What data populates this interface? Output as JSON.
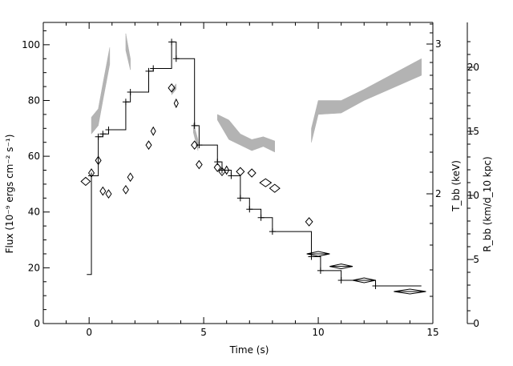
{
  "chart_data": {
    "type": "scatter",
    "title": "",
    "xlabel": "Time (s)",
    "ylabel_left": "Flux (10⁻⁹ ergs cm⁻² s⁻¹)",
    "ylabel_right_1": "T_bb (keV)",
    "ylabel_right_2": "R_bb (km/d_10 kpc)",
    "xlim": [
      -2,
      15
    ],
    "ylim_flux": [
      0,
      108
    ],
    "x_ticks": [
      "0",
      "5",
      "10",
      "15"
    ],
    "y_ticks_flux": [
      "0",
      "20",
      "40",
      "60",
      "80",
      "100"
    ],
    "y_ticks_T": [
      "2",
      "3"
    ],
    "y_ticks_R": [
      "0",
      "5",
      "10",
      "15",
      "20"
    ],
    "series": [
      {
        "label": "flux",
        "style": "step",
        "points": [
          {
            "x": -0.1,
            "y": 17.6
          },
          {
            "x": 0.1,
            "y": 53
          },
          {
            "x": 0.4,
            "y": 67
          },
          {
            "x": 0.6,
            "y": 68
          },
          {
            "x": 0.85,
            "y": 69.5
          },
          {
            "x": 1.6,
            "y": 79.5
          },
          {
            "x": 1.8,
            "y": 83
          },
          {
            "x": 2.6,
            "y": 90.5
          },
          {
            "x": 2.8,
            "y": 91.5
          },
          {
            "x": 3.6,
            "y": 101
          },
          {
            "x": 3.8,
            "y": 95
          },
          {
            "x": 4.6,
            "y": 71
          },
          {
            "x": 4.8,
            "y": 64
          },
          {
            "x": 5.6,
            "y": 58
          },
          {
            "x": 5.8,
            "y": 55
          },
          {
            "x": 6.2,
            "y": 53
          },
          {
            "x": 6.6,
            "y": 45
          },
          {
            "x": 7.0,
            "y": 41
          },
          {
            "x": 7.5,
            "y": 38
          },
          {
            "x": 8.0,
            "y": 33
          },
          {
            "x": 9.7,
            "y": 24
          },
          {
            "x": 10.1,
            "y": 19
          },
          {
            "x": 11.0,
            "y": 15.5
          },
          {
            "x": 12.5,
            "y": 13.5
          },
          {
            "x": 14.5,
            "y": 13.5
          }
        ]
      },
      {
        "label": "temperature",
        "style": "diamond",
        "points_in_flux_units": [
          {
            "x": -0.15,
            "y": 51,
            "dx": 0.2
          },
          {
            "x": 0.1,
            "y": 54,
            "dx": 0.12
          },
          {
            "x": 0.4,
            "y": 58.5,
            "dx": 0.12
          },
          {
            "x": 0.6,
            "y": 47.5,
            "dx": 0.12
          },
          {
            "x": 0.85,
            "y": 46.5,
            "dx": 0.12
          },
          {
            "x": 1.6,
            "y": 48,
            "dx": 0.12
          },
          {
            "x": 1.8,
            "y": 52.5,
            "dx": 0.12
          },
          {
            "x": 2.6,
            "y": 64,
            "dx": 0.12
          },
          {
            "x": 2.8,
            "y": 69,
            "dx": 0.1
          },
          {
            "x": 3.6,
            "y": 84.5,
            "dx": 0.14
          },
          {
            "x": 3.8,
            "y": 79,
            "dx": 0.08
          },
          {
            "x": 4.6,
            "y": 64,
            "dx": 0.14
          },
          {
            "x": 4.8,
            "y": 57,
            "dx": 0.13
          },
          {
            "x": 5.6,
            "y": 56,
            "dx": 0.14
          },
          {
            "x": 5.8,
            "y": 54.5,
            "dx": 0.14
          },
          {
            "x": 6.0,
            "y": 55,
            "dx": 0.1
          },
          {
            "x": 6.6,
            "y": 54.5,
            "dx": 0.17
          },
          {
            "x": 7.1,
            "y": 54,
            "dx": 0.17
          },
          {
            "x": 7.7,
            "y": 50.5,
            "dx": 0.25
          },
          {
            "x": 8.1,
            "y": 48.5,
            "dx": 0.22
          },
          {
            "x": 9.6,
            "y": 36.5,
            "dx": 0.15
          },
          {
            "x": 10.0,
            "y": 25,
            "dx": 0.5
          },
          {
            "x": 11.0,
            "y": 20.5,
            "dx": 0.5
          },
          {
            "x": 12.0,
            "y": 15.5,
            "dx": 0.5
          },
          {
            "x": 14.0,
            "y": 11.5,
            "dx": 0.7
          }
        ]
      },
      {
        "label": "radius",
        "style": "band",
        "segments_in_flux_units": [
          [
            {
              "x": 0.1,
              "y1": 68,
              "y2": 74
            },
            {
              "x": 0.4,
              "y1": 71,
              "y2": 77
            },
            {
              "x": 0.6,
              "y1": 80,
              "y2": 86
            },
            {
              "x": 0.9,
              "y1": 93,
              "y2": 99
            }
          ],
          [
            {
              "x": 1.6,
              "y1": 98,
              "y2": 104
            },
            {
              "x": 1.8,
              "y1": 91,
              "y2": 95
            }
          ],
          [
            {
              "x": 3.6,
              "y1": 82,
              "y2": 84
            },
            {
              "x": 3.8,
              "y1": 84,
              "y2": 86
            }
          ],
          [
            {
              "x": 4.55,
              "y1": 68.5,
              "y2": 72
            },
            {
              "x": 4.75,
              "y1": 62,
              "y2": 66
            }
          ],
          [
            {
              "x": 5.6,
              "y1": 73,
              "y2": 75
            },
            {
              "x": 6.1,
              "y1": 66,
              "y2": 73
            },
            {
              "x": 6.6,
              "y1": 64,
              "y2": 68
            },
            {
              "x": 7.1,
              "y1": 62,
              "y2": 66
            },
            {
              "x": 7.6,
              "y1": 63.5,
              "y2": 67
            },
            {
              "x": 8.1,
              "y1": 61.5,
              "y2": 65.5
            }
          ],
          [
            {
              "x": 9.7,
              "y1": 65,
              "y2": 70
            },
            {
              "x": 10.0,
              "y1": 75,
              "y2": 80
            },
            {
              "x": 11.0,
              "y1": 75.5,
              "y2": 80
            },
            {
              "x": 12.0,
              "y1": 80,
              "y2": 84
            },
            {
              "x": 14.5,
              "y1": 89,
              "y2": 95
            }
          ]
        ]
      }
    ]
  }
}
